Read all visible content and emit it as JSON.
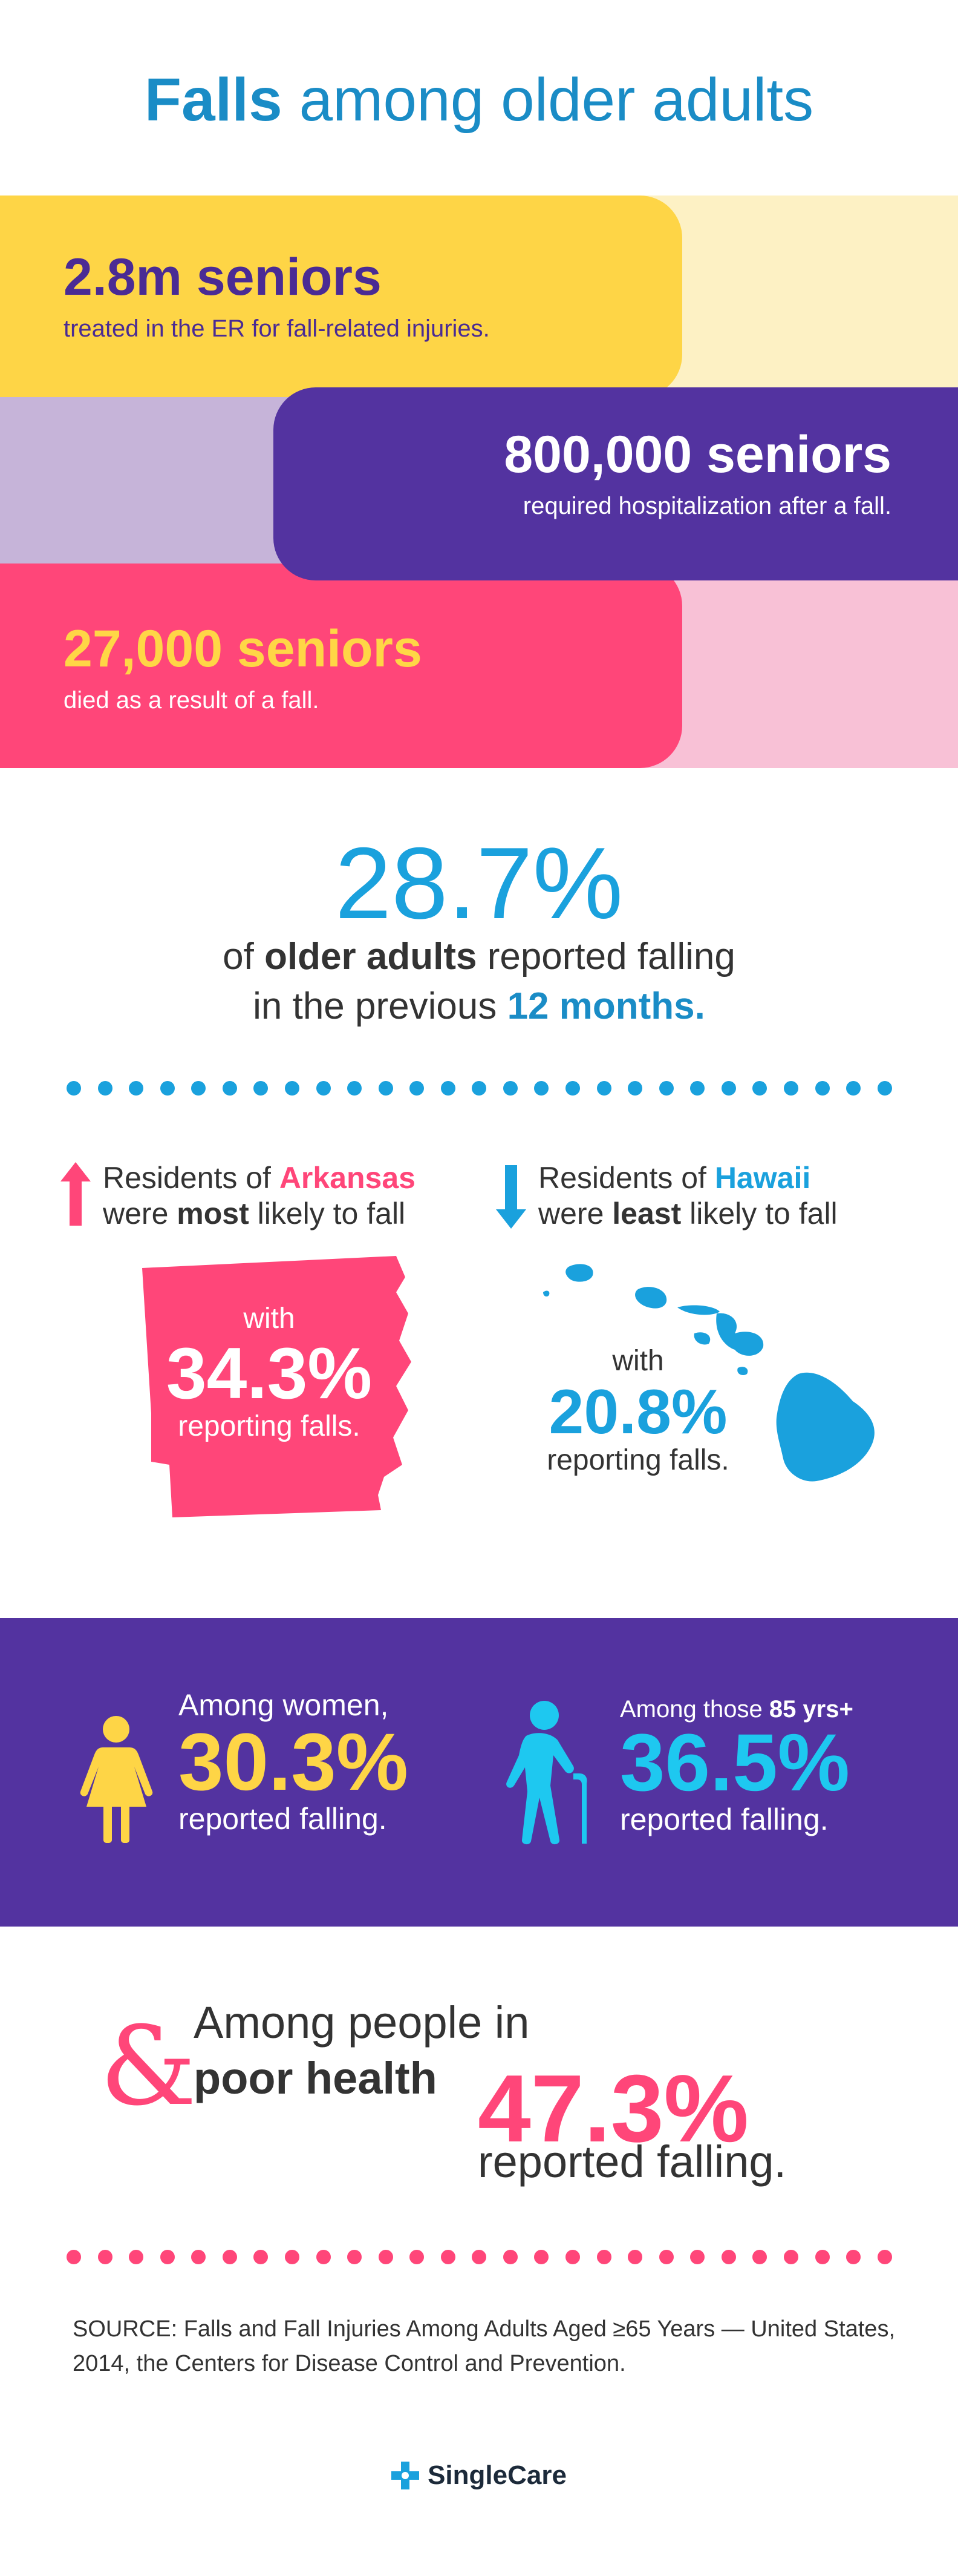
{
  "title": {
    "bold": "Falls",
    "rest": "among older adults"
  },
  "stats": [
    {
      "big": "2.8m seniors",
      "small": "treated in the ER for fall-related injuries."
    },
    {
      "big": "800,000 seniors",
      "small": "required hospitalization after a fall."
    },
    {
      "big": "27,000 seniors",
      "small": "died as a result of a fall."
    }
  ],
  "overall": {
    "value": "28.7%",
    "line1_pre": "of ",
    "line1_bold": "older adults",
    "line1_post": " reported falling",
    "line2_pre": "in the previous ",
    "line2_bold": "12 months."
  },
  "arkansas": {
    "pre": "Residents of ",
    "state": "Arkansas",
    "line2_pre": "were ",
    "line2_bold": "most",
    "line2_post": " likely to fall",
    "with": "with",
    "value": "34.3%",
    "tail": "reporting falls."
  },
  "hawaii": {
    "pre": "Residents of ",
    "state": "Hawaii",
    "line2_pre": "were ",
    "line2_bold": "least",
    "line2_post": " likely to fall",
    "with": "with",
    "value": "20.8%",
    "tail": "reporting falls."
  },
  "women": {
    "lead": "Among women,",
    "value": "30.3%",
    "tail": "reported falling."
  },
  "elderly": {
    "lead_pre": "Among those ",
    "lead_bold": "85 yrs+",
    "value": "36.5%",
    "tail": "reported falling."
  },
  "poor_health": {
    "amp": "&",
    "line1": "Among people in",
    "line2": "poor health",
    "value": "47.3%",
    "tail": "reported falling."
  },
  "source": "SOURCE: Falls and Fall Injuries Among Adults Aged ≥65 Years — United States, 2014, the Centers for Disease Control and Prevention.",
  "logo": {
    "text": "SingleCare"
  },
  "colors": {
    "blue": "#1aa1dd",
    "yellow": "#fed546",
    "purple": "#5333a0",
    "pink": "#ff4679"
  },
  "icons": [
    "arrow-up-icon",
    "arrow-down-icon",
    "arkansas-map-icon",
    "hawaii-map-icon",
    "woman-icon",
    "elderly-cane-icon",
    "singlecare-logo-icon"
  ]
}
